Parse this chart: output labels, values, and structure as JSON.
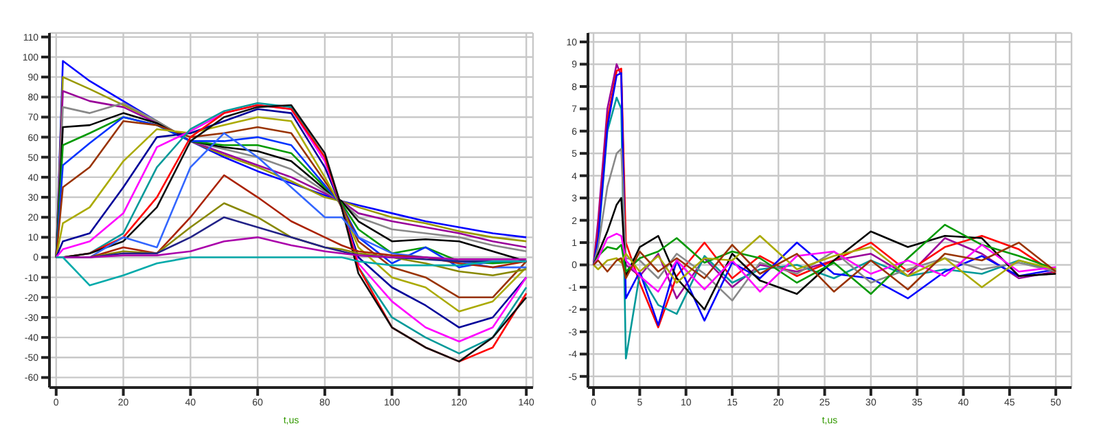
{
  "chart_data": [
    {
      "type": "line",
      "xlabel": "t,us",
      "xlim": [
        -2,
        142
      ],
      "xticks": [
        0,
        20,
        40,
        60,
        80,
        100,
        120,
        140
      ],
      "ylim": [
        -65,
        112
      ],
      "yticks": [
        -60,
        -50,
        -40,
        -30,
        -20,
        -10,
        0,
        10,
        20,
        30,
        40,
        50,
        60,
        70,
        80,
        90,
        100,
        110
      ],
      "grid": true,
      "marker": "none",
      "line_style": "solid",
      "x": [
        0,
        2,
        10,
        20,
        30,
        40,
        50,
        60,
        70,
        80,
        85,
        90,
        100,
        110,
        120,
        130,
        140
      ],
      "series": [
        {
          "color": "#0000ff",
          "values": [
            0,
            98,
            88,
            78,
            68,
            58,
            50,
            43,
            37,
            31,
            28,
            26,
            22,
            18,
            15,
            12,
            10
          ]
        },
        {
          "color": "#999900",
          "values": [
            0,
            90,
            84,
            76,
            68,
            58,
            51,
            45,
            38,
            30,
            28,
            25,
            20,
            17,
            13,
            10,
            8
          ]
        },
        {
          "color": "#990099",
          "values": [
            0,
            83,
            78,
            75,
            67,
            58,
            52,
            46,
            40,
            32,
            28,
            22,
            18,
            15,
            12,
            8,
            5
          ]
        },
        {
          "color": "#888888",
          "values": [
            0,
            75,
            72,
            77,
            68,
            58,
            54,
            50,
            44,
            33,
            28,
            20,
            14,
            12,
            10,
            6,
            3
          ]
        },
        {
          "color": "#000000",
          "values": [
            0,
            65,
            66,
            72,
            67,
            58,
            55,
            53,
            48,
            34,
            28,
            18,
            8,
            9,
            8,
            3,
            -2
          ]
        },
        {
          "color": "#009900",
          "values": [
            0,
            56,
            62,
            70,
            66,
            58,
            56,
            56,
            52,
            35,
            27,
            14,
            2,
            5,
            -2,
            -3,
            -2
          ]
        },
        {
          "color": "#0033ff",
          "values": [
            0,
            46,
            57,
            70,
            66,
            58,
            58,
            60,
            56,
            36,
            26,
            10,
            -3,
            5,
            -5,
            -2,
            -2
          ]
        },
        {
          "color": "#993300",
          "values": [
            0,
            35,
            45,
            68,
            66,
            60,
            62,
            65,
            62,
            38,
            26,
            8,
            -5,
            -10,
            -20,
            -20,
            -2
          ]
        },
        {
          "color": "#aaaa00",
          "values": [
            0,
            17,
            25,
            48,
            64,
            62,
            66,
            70,
            68,
            40,
            25,
            5,
            -10,
            -15,
            -27,
            -22,
            -5
          ]
        },
        {
          "color": "#000099",
          "values": [
            0,
            8,
            12,
            35,
            60,
            62,
            68,
            74,
            72,
            45,
            25,
            0,
            -15,
            -24,
            -35,
            -30,
            -10
          ]
        },
        {
          "color": "#ff00ff",
          "values": [
            0,
            4,
            8,
            22,
            55,
            63,
            72,
            76,
            74,
            48,
            25,
            -3,
            -22,
            -35,
            -42,
            -35,
            -10
          ]
        },
        {
          "color": "#009999",
          "values": [
            0,
            0,
            2,
            12,
            45,
            64,
            73,
            77,
            75,
            50,
            25,
            -5,
            -30,
            -40,
            -48,
            -40,
            -15
          ]
        },
        {
          "color": "#ff0000",
          "values": [
            0,
            0,
            2,
            10,
            30,
            60,
            72,
            76,
            74,
            50,
            25,
            -5,
            -35,
            -45,
            -52,
            -45,
            -18
          ]
        },
        {
          "color": "#111111",
          "values": [
            0,
            0,
            2,
            8,
            25,
            58,
            70,
            75,
            76,
            52,
            25,
            -8,
            -35,
            -45,
            -52,
            -40,
            -20
          ]
        },
        {
          "color": "#3366ff",
          "values": [
            0,
            0,
            0,
            10,
            5,
            45,
            62,
            50,
            35,
            20,
            20,
            10,
            2,
            0,
            -2,
            -5,
            -5
          ]
        },
        {
          "color": "#aa2200",
          "values": [
            0,
            0,
            0,
            5,
            2,
            20,
            41,
            30,
            18,
            10,
            6,
            3,
            1,
            0,
            -3,
            -5,
            -2
          ]
        },
        {
          "color": "#888800",
          "values": [
            0,
            0,
            0,
            3,
            2,
            15,
            27,
            20,
            10,
            5,
            4,
            2,
            0,
            -3,
            -7,
            -9,
            -6
          ]
        },
        {
          "color": "#222288",
          "values": [
            0,
            0,
            0,
            2,
            2,
            10,
            20,
            15,
            10,
            5,
            3,
            1,
            0,
            -1,
            -2,
            -2,
            -2
          ]
        },
        {
          "color": "#aa00aa",
          "values": [
            0,
            0,
            0,
            1,
            1,
            3,
            8,
            10,
            6,
            3,
            2,
            1,
            0,
            0,
            -1,
            -1,
            -1
          ]
        },
        {
          "color": "#00aaaa",
          "values": [
            0,
            0,
            -14,
            -9,
            -3,
            0,
            0,
            0,
            0,
            0,
            0,
            -2,
            -4,
            -4,
            -4,
            -2,
            -2
          ]
        }
      ]
    },
    {
      "type": "line",
      "xlabel": "t,us",
      "xlim": [
        -0.6,
        51.7
      ],
      "xticks": [
        0,
        5,
        10,
        15,
        20,
        25,
        30,
        35,
        40,
        45,
        50
      ],
      "ylim": [
        -5.5,
        10.4
      ],
      "yticks": [
        -5,
        -4,
        -3,
        -2,
        -1,
        0,
        1,
        2,
        3,
        4,
        5,
        6,
        7,
        8,
        9,
        10
      ],
      "grid": true,
      "marker": "none",
      "line_style": "solid",
      "x": [
        0,
        0.5,
        1.5,
        2.5,
        3,
        3.5,
        5,
        7,
        9,
        12,
        15,
        18,
        22,
        26,
        30,
        34,
        38,
        42,
        46,
        50
      ],
      "series": [
        {
          "color": "#990099",
          "values": [
            0,
            2,
            7,
            9,
            8.5,
            0,
            -0.5,
            0.5,
            -1.5,
            0.3,
            -1,
            0,
            -0.3,
            0.2,
            0.5,
            -0.5,
            1.2,
            0.5,
            -0.6,
            -0.3
          ]
        },
        {
          "color": "#ff0000",
          "values": [
            0,
            1.5,
            6.5,
            8.7,
            8.8,
            1,
            -0.8,
            -2.8,
            -0.5,
            1,
            -0.6,
            0.4,
            -0.5,
            0.2,
            1,
            -0.3,
            0.8,
            1.3,
            0.7,
            -0.4
          ]
        },
        {
          "color": "#009999",
          "values": [
            0,
            1,
            6,
            7.5,
            7,
            -4.2,
            -0.4,
            -1.8,
            -2.2,
            0.4,
            -0.8,
            -0.2,
            0,
            -0.6,
            0.2,
            -0.5,
            -0.2,
            -0.4,
            0.2,
            -0.3
          ]
        },
        {
          "color": "#0000ff",
          "values": [
            0,
            1.2,
            6.2,
            8.5,
            8.6,
            -1.5,
            -0.3,
            -2.7,
            0.2,
            -2.5,
            0.1,
            -0.6,
            1,
            -0.4,
            -0.6,
            -1.5,
            -0.3,
            0.4,
            -0.5,
            -0.2
          ]
        },
        {
          "color": "#888888",
          "values": [
            0,
            0.8,
            3.5,
            5,
            5.2,
            0.3,
            0.2,
            -0.6,
            0.5,
            -0.4,
            -1.6,
            0.1,
            -0.4,
            0.6,
            -0.8,
            -0.2,
            0.3,
            -0.2,
            0.1,
            -0.3
          ]
        },
        {
          "color": "#000000",
          "values": [
            0,
            0.5,
            1.5,
            2.7,
            3,
            -0.5,
            0.8,
            1.3,
            -0.6,
            -2,
            0.5,
            -0.7,
            -1.3,
            0.2,
            1.5,
            0.8,
            1.3,
            1.2,
            -0.5,
            -0.4
          ]
        },
        {
          "color": "#009900",
          "values": [
            0,
            0.4,
            0.8,
            0.7,
            0.9,
            -0.3,
            0.3,
            0.6,
            1.2,
            0.1,
            0.6,
            0.3,
            -0.8,
            0.1,
            -1.3,
            0.3,
            1.8,
            0.9,
            0.4,
            -0.2
          ]
        },
        {
          "color": "#ff00ff",
          "values": [
            0,
            0.3,
            1.2,
            1.4,
            1.3,
            0.2,
            -0.5,
            -1.2,
            0.2,
            -1.1,
            0.2,
            -1.2,
            0.4,
            0.6,
            -0.4,
            0.2,
            -0.5,
            0.9,
            -0.3,
            -0.1
          ]
        },
        {
          "color": "#aaaa00",
          "values": [
            0,
            -0.2,
            0.2,
            0.3,
            0.1,
            0.5,
            -0.3,
            0.4,
            -0.8,
            0.3,
            0.2,
            1.3,
            -0.2,
            0.4,
            0.8,
            -0.5,
            0.3,
            -1,
            0.2,
            -0.2
          ]
        },
        {
          "color": "#993300",
          "values": [
            0,
            0.2,
            -0.3,
            0.2,
            0.3,
            -0.6,
            0.6,
            -0.3,
            0.3,
            -0.6,
            0.9,
            -0.4,
            0.5,
            -1.2,
            0.2,
            -1.1,
            0.5,
            0.2,
            1,
            -0.3
          ]
        }
      ]
    }
  ]
}
